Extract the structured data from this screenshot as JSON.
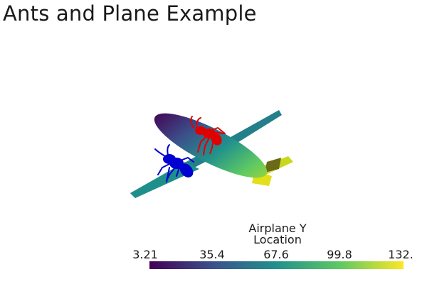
{
  "title": "Ants and Plane Example",
  "scalar_bar": {
    "title_line1": "Airplane Y",
    "title_line2": "Location",
    "ticks": [
      "3.21",
      "35.4",
      "67.6",
      "99.8",
      "132."
    ],
    "colormap": "viridis",
    "colors": [
      "#440154",
      "#3b528b",
      "#21918c",
      "#5ec962",
      "#fde725"
    ]
  },
  "scene": {
    "objects": [
      {
        "name": "airplane",
        "coloring": "viridis scalar"
      },
      {
        "name": "ant",
        "color": "#e00000"
      },
      {
        "name": "ant",
        "color": "#0000d0"
      }
    ]
  }
}
